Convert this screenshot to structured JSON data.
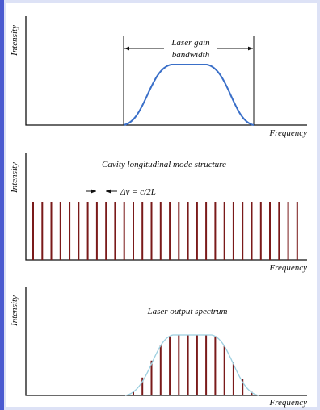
{
  "panels": [
    {
      "axis_label": "Intensity",
      "x_label": "Frequency",
      "annotation": [
        "Laser gain",
        "bandwidth"
      ]
    },
    {
      "axis_label": "Intensity",
      "x_label": "Frequency",
      "title": "Cavity longitudinal mode structure",
      "spacing_label": "Δν = c/2L"
    },
    {
      "axis_label": "Intensity",
      "x_label": "Frequency",
      "title": "Laser output spectrum"
    }
  ]
}
